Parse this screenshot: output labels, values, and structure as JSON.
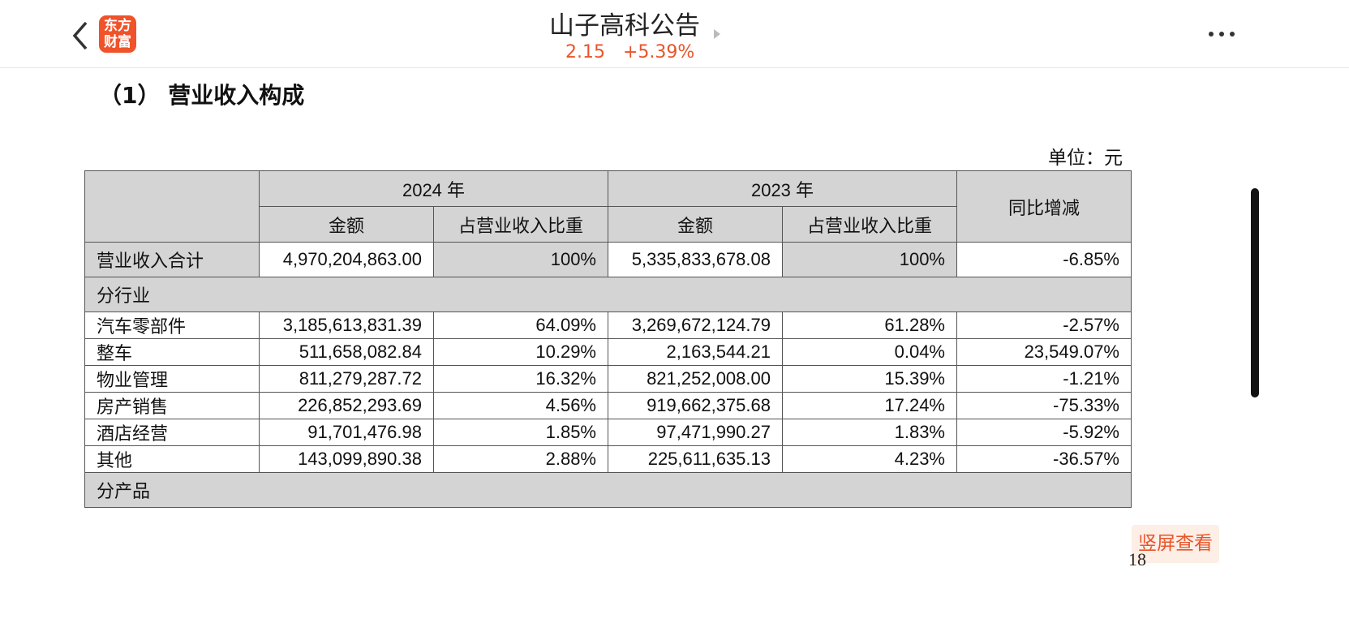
{
  "header": {
    "logo": [
      "东方",
      "财富"
    ],
    "title": "山子高科公告",
    "price": "2.15",
    "change": "+5.39%"
  },
  "section_title": "（1） 营业收入构成",
  "unit": "单位：元",
  "table": {
    "header_row1": [
      "2024 年",
      "2023 年",
      "同比增减"
    ],
    "header_row2": [
      "金额",
      "占营业收入比重",
      "金额",
      "占营业收入比重"
    ],
    "rows": [
      [
        "营业收入合计",
        "4,970,204,863.00",
        "100%",
        "5,335,833,678.08",
        "100%",
        "-6.85%"
      ],
      [
        "分行业"
      ],
      [
        "汽车零部件",
        "3,185,613,831.39",
        "64.09%",
        "3,269,672,124.79",
        "61.28%",
        "-2.57%"
      ],
      [
        "整车",
        "511,658,082.84",
        "10.29%",
        "2,163,544.21",
        "0.04%",
        "23,549.07%"
      ],
      [
        "物业管理",
        "811,279,287.72",
        "16.32%",
        "821,252,008.00",
        "15.39%",
        "-1.21%"
      ],
      [
        "房产销售",
        "226,852,293.69",
        "4.56%",
        "919,662,375.68",
        "17.24%",
        "-75.33%"
      ],
      [
        "酒店经营",
        "91,701,476.98",
        "1.85%",
        "97,471,990.27",
        "1.83%",
        "-5.92%"
      ],
      [
        "其他",
        "143,099,890.38",
        "2.88%",
        "225,611,635.13",
        "4.23%",
        "-36.57%"
      ],
      [
        "分产品"
      ]
    ]
  },
  "rotate_button": "竖屏查看",
  "page_number": "18"
}
